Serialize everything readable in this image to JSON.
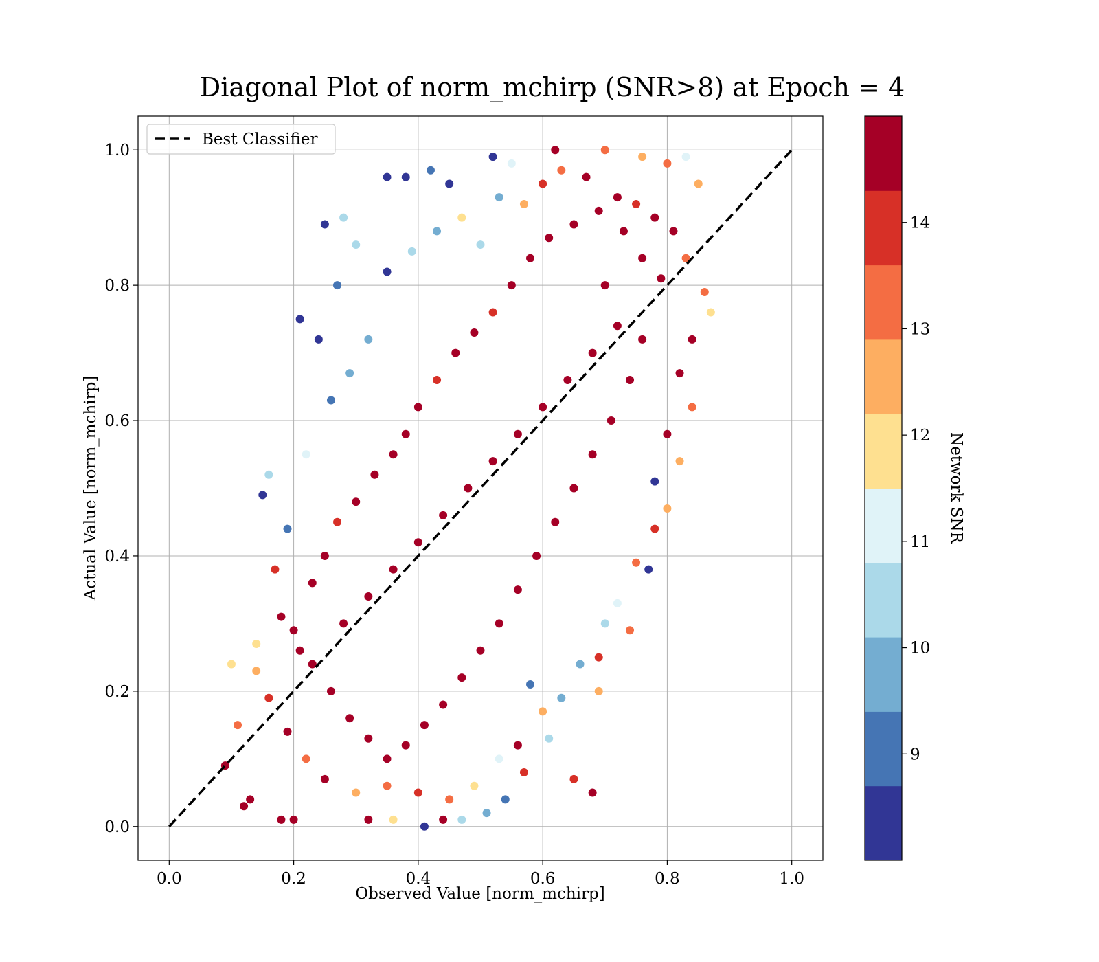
{
  "chart_data": {
    "type": "scatter",
    "title": "Diagonal Plot of norm_mchirp (SNR>8) at Epoch = 4",
    "xlabel": "Observed Value [norm_mchirp]",
    "ylabel": "Actual Value [norm_mchirp]",
    "xlim": [
      -0.05,
      1.05
    ],
    "ylim": [
      -0.05,
      1.05
    ],
    "xticks": [
      "0.0",
      "0.2",
      "0.4",
      "0.6",
      "0.8",
      "1.0"
    ],
    "yticks": [
      "0.0",
      "0.2",
      "0.4",
      "0.6",
      "0.8",
      "1.0"
    ],
    "grid": true,
    "legend": {
      "position": "top-left",
      "entries": [
        "Best Classifier"
      ]
    },
    "reference_line": {
      "name": "Best Classifier",
      "style": "dashed",
      "color": "#000000",
      "x": [
        0,
        1
      ],
      "y": [
        0,
        1
      ]
    },
    "colorbar": {
      "label": "Network SNR",
      "colormap": "RdYlBu_r",
      "range": [
        8,
        15
      ],
      "levels": 10,
      "ticks": [
        "9",
        "10",
        "11",
        "12",
        "13",
        "14"
      ],
      "colors": [
        "#313695",
        "#4575b4",
        "#74add1",
        "#abd9e9",
        "#e0f3f8",
        "#fee090",
        "#fdae61",
        "#f46d43",
        "#d73027",
        "#a50026"
      ]
    },
    "series": [
      {
        "marker": "circle",
        "points": [
          [
            0.09,
            0.09,
            14.8
          ],
          [
            0.1,
            0.24,
            12.1
          ],
          [
            0.12,
            0.03,
            14.6
          ],
          [
            0.15,
            0.49,
            8.2
          ],
          [
            0.16,
            0.52,
            10.4
          ],
          [
            0.18,
            0.01,
            14.9
          ],
          [
            0.21,
            0.75,
            8.1
          ],
          [
            0.24,
            0.72,
            8.3
          ],
          [
            0.25,
            0.89,
            8.1
          ],
          [
            0.27,
            0.8,
            9.0
          ],
          [
            0.28,
            0.9,
            10.3
          ],
          [
            0.3,
            0.86,
            10.6
          ],
          [
            0.35,
            0.96,
            8.2
          ],
          [
            0.38,
            0.96,
            8.3
          ],
          [
            0.42,
            0.97,
            9.1
          ],
          [
            0.45,
            0.95,
            8.4
          ],
          [
            0.52,
            0.99,
            8.5
          ],
          [
            0.55,
            0.98,
            11.2
          ],
          [
            0.62,
            1.0,
            14.8
          ],
          [
            0.7,
            1.0,
            13.2
          ],
          [
            0.76,
            0.99,
            12.3
          ],
          [
            0.8,
            0.98,
            13.4
          ],
          [
            0.83,
            0.99,
            11.0
          ],
          [
            0.85,
            0.95,
            12.6
          ],
          [
            0.86,
            0.79,
            13.5
          ],
          [
            0.87,
            0.76,
            12.2
          ],
          [
            0.84,
            0.62,
            13.2
          ],
          [
            0.82,
            0.54,
            12.4
          ],
          [
            0.78,
            0.51,
            8.2
          ],
          [
            0.8,
            0.47,
            12.5
          ],
          [
            0.77,
            0.38,
            8.5
          ],
          [
            0.74,
            0.29,
            13.6
          ],
          [
            0.69,
            0.25,
            14.2
          ],
          [
            0.69,
            0.2,
            12.5
          ],
          [
            0.68,
            0.05,
            14.5
          ],
          [
            0.65,
            0.07,
            13.7
          ],
          [
            0.61,
            0.13,
            10.3
          ],
          [
            0.58,
            0.21,
            8.8
          ],
          [
            0.56,
            0.12,
            14.4
          ],
          [
            0.54,
            0.04,
            9.1
          ],
          [
            0.51,
            0.02,
            9.6
          ],
          [
            0.47,
            0.01,
            10.2
          ],
          [
            0.44,
            0.01,
            14.7
          ],
          [
            0.41,
            0.0,
            8.4
          ],
          [
            0.36,
            0.01,
            12.0
          ],
          [
            0.32,
            0.01,
            14.9
          ],
          [
            0.2,
            0.01,
            14.5
          ],
          [
            0.13,
            0.04,
            14.3
          ],
          [
            0.11,
            0.15,
            13.6
          ],
          [
            0.14,
            0.27,
            11.6
          ],
          [
            0.17,
            0.38,
            14.1
          ],
          [
            0.19,
            0.44,
            9.2
          ],
          [
            0.22,
            0.55,
            10.8
          ],
          [
            0.26,
            0.63,
            8.9
          ],
          [
            0.29,
            0.67,
            10.1
          ],
          [
            0.32,
            0.72,
            9.4
          ],
          [
            0.35,
            0.82,
            8.6
          ],
          [
            0.39,
            0.85,
            10.7
          ],
          [
            0.43,
            0.88,
            9.8
          ],
          [
            0.47,
            0.9,
            11.5
          ],
          [
            0.5,
            0.86,
            10.5
          ],
          [
            0.53,
            0.93,
            9.7
          ],
          [
            0.57,
            0.92,
            12.6
          ],
          [
            0.6,
            0.95,
            14.1
          ],
          [
            0.63,
            0.97,
            13.4
          ],
          [
            0.67,
            0.96,
            14.8
          ],
          [
            0.72,
            0.93,
            14.6
          ],
          [
            0.75,
            0.92,
            13.8
          ],
          [
            0.78,
            0.9,
            14.9
          ],
          [
            0.81,
            0.88,
            14.4
          ],
          [
            0.83,
            0.84,
            13.0
          ],
          [
            0.84,
            0.72,
            14.7
          ],
          [
            0.82,
            0.67,
            14.5
          ],
          [
            0.8,
            0.58,
            14.9
          ],
          [
            0.78,
            0.44,
            14.0
          ],
          [
            0.75,
            0.39,
            12.9
          ],
          [
            0.72,
            0.33,
            11.4
          ],
          [
            0.7,
            0.3,
            10.6
          ],
          [
            0.66,
            0.24,
            10.0
          ],
          [
            0.63,
            0.19,
            9.4
          ],
          [
            0.6,
            0.17,
            12.8
          ],
          [
            0.57,
            0.08,
            13.9
          ],
          [
            0.53,
            0.1,
            10.9
          ],
          [
            0.49,
            0.06,
            12.1
          ],
          [
            0.45,
            0.04,
            13.3
          ],
          [
            0.4,
            0.05,
            14.2
          ],
          [
            0.35,
            0.06,
            13.1
          ],
          [
            0.3,
            0.05,
            12.3
          ],
          [
            0.25,
            0.07,
            14.8
          ],
          [
            0.22,
            0.1,
            13.5
          ],
          [
            0.19,
            0.14,
            14.6
          ],
          [
            0.16,
            0.19,
            14.1
          ],
          [
            0.14,
            0.23,
            12.8
          ],
          [
            0.18,
            0.31,
            14.9
          ],
          [
            0.2,
            0.29,
            14.3
          ],
          [
            0.23,
            0.36,
            14.9
          ],
          [
            0.25,
            0.4,
            14.7
          ],
          [
            0.27,
            0.45,
            14.2
          ],
          [
            0.3,
            0.48,
            14.9
          ],
          [
            0.33,
            0.52,
            14.5
          ],
          [
            0.36,
            0.55,
            14.9
          ],
          [
            0.38,
            0.58,
            14.4
          ],
          [
            0.4,
            0.62,
            14.8
          ],
          [
            0.43,
            0.66,
            13.9
          ],
          [
            0.46,
            0.7,
            14.9
          ],
          [
            0.49,
            0.73,
            14.6
          ],
          [
            0.52,
            0.76,
            14.2
          ],
          [
            0.55,
            0.8,
            14.9
          ],
          [
            0.58,
            0.84,
            14.7
          ],
          [
            0.61,
            0.87,
            14.9
          ],
          [
            0.65,
            0.89,
            14.5
          ],
          [
            0.69,
            0.91,
            14.9
          ],
          [
            0.73,
            0.88,
            14.8
          ],
          [
            0.76,
            0.84,
            14.9
          ],
          [
            0.79,
            0.81,
            14.6
          ],
          [
            0.76,
            0.72,
            14.9
          ],
          [
            0.74,
            0.66,
            14.7
          ],
          [
            0.71,
            0.6,
            14.9
          ],
          [
            0.68,
            0.55,
            14.8
          ],
          [
            0.65,
            0.5,
            14.9
          ],
          [
            0.62,
            0.45,
            14.6
          ],
          [
            0.59,
            0.4,
            14.9
          ],
          [
            0.56,
            0.35,
            14.8
          ],
          [
            0.53,
            0.3,
            14.9
          ],
          [
            0.5,
            0.26,
            14.5
          ],
          [
            0.47,
            0.22,
            14.9
          ],
          [
            0.44,
            0.18,
            14.7
          ],
          [
            0.41,
            0.15,
            14.9
          ],
          [
            0.38,
            0.12,
            14.6
          ],
          [
            0.35,
            0.1,
            14.9
          ],
          [
            0.32,
            0.13,
            14.8
          ],
          [
            0.29,
            0.16,
            14.9
          ],
          [
            0.26,
            0.2,
            14.7
          ],
          [
            0.23,
            0.24,
            14.9
          ],
          [
            0.21,
            0.26,
            14.5
          ],
          [
            0.28,
            0.3,
            14.9
          ],
          [
            0.32,
            0.34,
            14.8
          ],
          [
            0.36,
            0.38,
            14.9
          ],
          [
            0.4,
            0.42,
            14.7
          ],
          [
            0.44,
            0.46,
            14.9
          ],
          [
            0.48,
            0.5,
            14.8
          ],
          [
            0.52,
            0.54,
            14.9
          ],
          [
            0.56,
            0.58,
            14.6
          ],
          [
            0.6,
            0.62,
            14.9
          ],
          [
            0.64,
            0.66,
            14.8
          ],
          [
            0.68,
            0.7,
            14.9
          ],
          [
            0.72,
            0.74,
            14.7
          ],
          [
            0.7,
            0.8,
            14.9
          ]
        ]
      }
    ]
  }
}
